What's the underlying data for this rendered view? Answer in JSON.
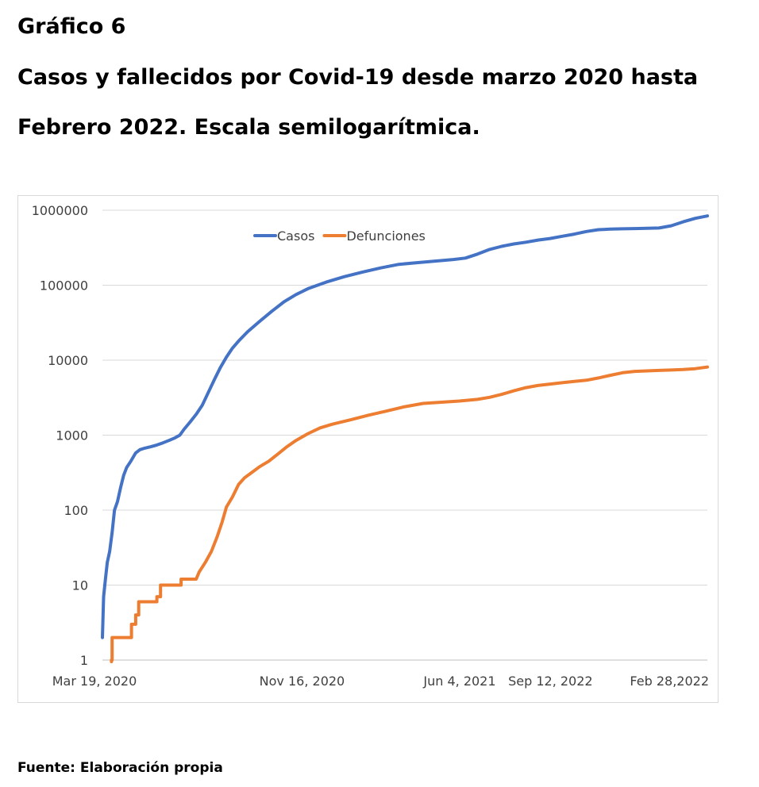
{
  "figure": {
    "label": "Gráfico 6",
    "title_line1": "Casos y fallecidos por Covid-19 desde marzo 2020 hasta",
    "title_line2": "Febrero 2022. Escala semilogarítmica.",
    "source": "Fuente: Elaboración propia"
  },
  "chart_data": {
    "type": "line",
    "yscale": "log",
    "ylim": [
      1,
      1000000
    ],
    "yticks": [
      "1",
      "10",
      "100",
      "1000",
      "10000",
      "100000",
      "1000000"
    ],
    "xticks": [
      "Mar 19, 2020",
      "Nov 16, 2020",
      "Jun 4, 2021",
      "Sep 12, 2022",
      "Feb 28,2022"
    ],
    "grid": true,
    "legend_position": "top",
    "x_domain": [
      0,
      100
    ],
    "xtick_positions": [
      0,
      33,
      58,
      80,
      100
    ],
    "series": [
      {
        "name": "Casos",
        "color": "#4472C4",
        "points": [
          [
            0.0,
            2
          ],
          [
            0.2,
            7
          ],
          [
            0.5,
            12
          ],
          [
            0.8,
            20
          ],
          [
            1.2,
            28
          ],
          [
            1.6,
            50
          ],
          [
            2.0,
            100
          ],
          [
            2.5,
            130
          ],
          [
            3.0,
            200
          ],
          [
            3.5,
            290
          ],
          [
            4.0,
            370
          ],
          [
            4.7,
            450
          ],
          [
            5.5,
            580
          ],
          [
            6.2,
            640
          ],
          [
            7.0,
            670
          ],
          [
            8.0,
            700
          ],
          [
            9.0,
            740
          ],
          [
            10.0,
            790
          ],
          [
            11.0,
            850
          ],
          [
            12.0,
            920
          ],
          [
            12.8,
            1000
          ],
          [
            13.5,
            1200
          ],
          [
            14.5,
            1500
          ],
          [
            15.5,
            1900
          ],
          [
            16.5,
            2500
          ],
          [
            17.5,
            3700
          ],
          [
            18.5,
            5500
          ],
          [
            19.5,
            8000
          ],
          [
            20.5,
            11000
          ],
          [
            21.5,
            14500
          ],
          [
            22.5,
            18000
          ],
          [
            24.0,
            24000
          ],
          [
            26.0,
            33000
          ],
          [
            28.0,
            45000
          ],
          [
            30.0,
            60000
          ],
          [
            32.0,
            75000
          ],
          [
            34.0,
            90000
          ],
          [
            37.0,
            110000
          ],
          [
            40.0,
            130000
          ],
          [
            43.0,
            150000
          ],
          [
            46.0,
            170000
          ],
          [
            49.0,
            190000
          ],
          [
            52.0,
            200000
          ],
          [
            55.0,
            210000
          ],
          [
            58.0,
            220000
          ],
          [
            60.0,
            230000
          ],
          [
            62.0,
            260000
          ],
          [
            64.0,
            300000
          ],
          [
            66.0,
            330000
          ],
          [
            68.0,
            355000
          ],
          [
            70.0,
            375000
          ],
          [
            72.0,
            400000
          ],
          [
            74.0,
            420000
          ],
          [
            76.0,
            450000
          ],
          [
            78.0,
            480000
          ],
          [
            80.0,
            520000
          ],
          [
            82.0,
            550000
          ],
          [
            84.0,
            560000
          ],
          [
            86.0,
            565000
          ],
          [
            88.0,
            570000
          ],
          [
            90.0,
            575000
          ],
          [
            92.0,
            580000
          ],
          [
            94.0,
            620000
          ],
          [
            96.0,
            700000
          ],
          [
            98.0,
            780000
          ],
          [
            100.0,
            840000
          ]
        ]
      },
      {
        "name": "Defunciones",
        "color": "#ED7D31",
        "points": [
          [
            1.5,
            0.7
          ],
          [
            1.5,
            1
          ],
          [
            1.6,
            1
          ],
          [
            1.6,
            2
          ],
          [
            4.8,
            2
          ],
          [
            4.8,
            3
          ],
          [
            5.5,
            3
          ],
          [
            5.5,
            4
          ],
          [
            6.0,
            4
          ],
          [
            6.0,
            6
          ],
          [
            9.0,
            6
          ],
          [
            9.0,
            7
          ],
          [
            9.6,
            7
          ],
          [
            9.6,
            10
          ],
          [
            13.0,
            10
          ],
          [
            13.0,
            12
          ],
          [
            15.5,
            12
          ],
          [
            16.0,
            15
          ],
          [
            17.0,
            20
          ],
          [
            18.0,
            28
          ],
          [
            19.0,
            45
          ],
          [
            19.8,
            70
          ],
          [
            20.5,
            110
          ],
          [
            21.5,
            150
          ],
          [
            22.5,
            220
          ],
          [
            23.5,
            270
          ],
          [
            24.5,
            310
          ],
          [
            26.0,
            380
          ],
          [
            27.5,
            450
          ],
          [
            29.0,
            560
          ],
          [
            30.5,
            700
          ],
          [
            32.0,
            850
          ],
          [
            34.0,
            1050
          ],
          [
            36.0,
            1250
          ],
          [
            38.0,
            1400
          ],
          [
            41.0,
            1600
          ],
          [
            44.0,
            1850
          ],
          [
            47.0,
            2100
          ],
          [
            50.0,
            2400
          ],
          [
            53.0,
            2650
          ],
          [
            56.0,
            2750
          ],
          [
            59.0,
            2850
          ],
          [
            62.0,
            3000
          ],
          [
            64.0,
            3200
          ],
          [
            66.0,
            3500
          ],
          [
            68.0,
            3900
          ],
          [
            70.0,
            4300
          ],
          [
            72.0,
            4600
          ],
          [
            74.0,
            4800
          ],
          [
            76.0,
            5000
          ],
          [
            78.0,
            5200
          ],
          [
            80.0,
            5400
          ],
          [
            82.0,
            5800
          ],
          [
            84.0,
            6300
          ],
          [
            86.0,
            6800
          ],
          [
            88.0,
            7100
          ],
          [
            90.0,
            7200
          ],
          [
            92.0,
            7300
          ],
          [
            94.0,
            7400
          ],
          [
            96.0,
            7500
          ],
          [
            98.0,
            7700
          ],
          [
            100.0,
            8100
          ]
        ]
      }
    ]
  }
}
